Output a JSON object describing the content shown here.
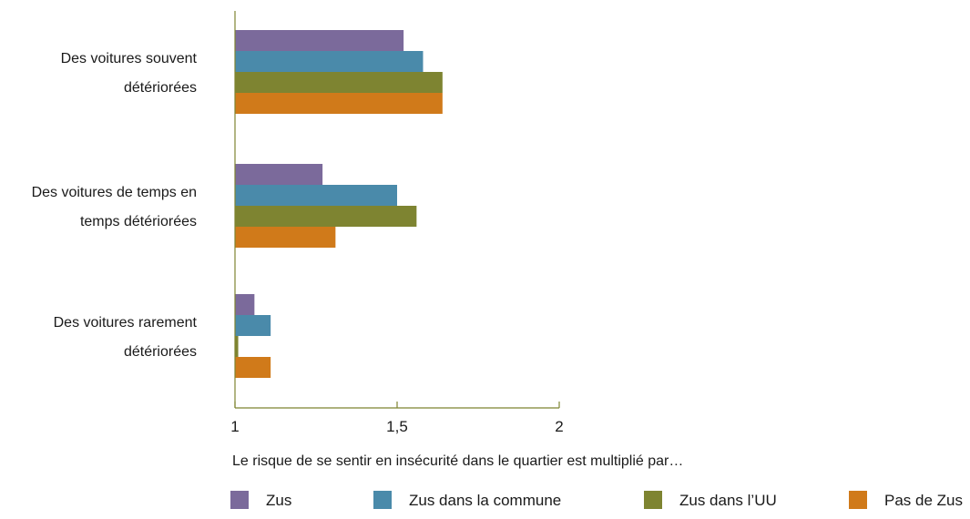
{
  "chart_data": {
    "type": "bar",
    "orientation": "horizontal",
    "categories": [
      [
        "Des voitures souvent",
        "détériorées"
      ],
      [
        "Des voitures de temps en",
        "temps détériorées"
      ],
      [
        "Des voitures rarement",
        "détériorées"
      ]
    ],
    "series": [
      {
        "name": "Zus",
        "color": "#7b6a9b",
        "values": [
          1.52,
          1.27,
          1.06
        ]
      },
      {
        "name": "Zus dans la commune",
        "color": "#4a8aaa",
        "values": [
          1.58,
          1.5,
          1.11
        ]
      },
      {
        "name": "Zus dans l’UU",
        "color": "#7e8431",
        "values": [
          1.64,
          1.56,
          1.01
        ]
      },
      {
        "name": "Pas de Zus",
        "color": "#d07a1a",
        "values": [
          1.64,
          1.31,
          1.11
        ]
      }
    ],
    "xlabel": "Le risque de se sentir en insécurité dans le quartier est multiplié par…",
    "ylabel": "",
    "title": "",
    "xlim": [
      1,
      2
    ],
    "x_ticks": [
      1,
      1.5,
      2
    ],
    "x_tick_labels": [
      "1",
      "1,5",
      "2"
    ],
    "axis_color": "#7e8431",
    "grid": false,
    "legend_position": "bottom"
  }
}
